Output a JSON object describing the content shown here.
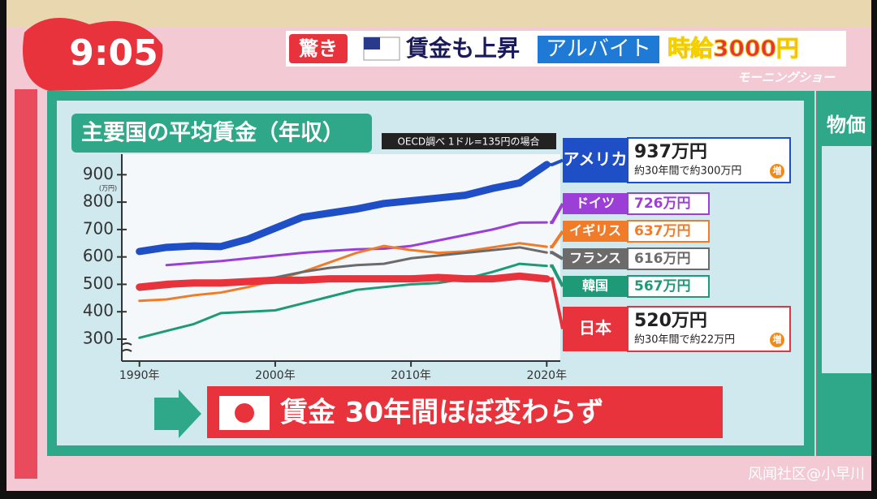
{
  "screen": {
    "clock": "9:05",
    "headline": {
      "tag": "驚き",
      "text": "賃金も上昇",
      "highlight": "アルバイト",
      "emphasis": "時給3000円"
    },
    "program": "モーニングショー",
    "side_panel_title": "物価",
    "watermark": "风闻社区@小早川"
  },
  "chart_data": {
    "type": "line",
    "title": "主要国の平均賃金（年収）",
    "source": "OECD調べ 1ドル=135円の場合",
    "y_unit": "(万円)",
    "x": [
      1990,
      1992,
      1994,
      1996,
      1998,
      2000,
      2002,
      2004,
      2006,
      2008,
      2010,
      2012,
      2014,
      2016,
      2018,
      2020
    ],
    "xlim": [
      1989,
      2021
    ],
    "xticks": [
      {
        "value": 1990,
        "label": "1990年"
      },
      {
        "value": 2000,
        "label": "2000年"
      },
      {
        "value": 2010,
        "label": "2010年"
      },
      {
        "value": 2020,
        "label": "2020年"
      }
    ],
    "ylim": [
      220,
      975
    ],
    "yticks": [
      300,
      400,
      500,
      600,
      700,
      800,
      900
    ],
    "series": [
      {
        "name": "アメリカ",
        "color": "#1f4fc6",
        "width": 9,
        "values": [
          620,
          635,
          640,
          638,
          665,
          705,
          745,
          760,
          775,
          795,
          805,
          815,
          825,
          850,
          870,
          937
        ],
        "value_labels": [
          null,
          null,
          null,
          null,
          null,
          null,
          null,
          null,
          null,
          null,
          null,
          null,
          null,
          null,
          null,
          "937万円"
        ],
        "note": "約30年間で約300万円",
        "badge": "増"
      },
      {
        "name": "ドイツ",
        "color": "#9b3fd6",
        "width": 3,
        "values": [
          null,
          570,
          578,
          585,
          595,
          605,
          615,
          622,
          628,
          630,
          640,
          660,
          680,
          700,
          725,
          726
        ],
        "value_labels": [
          null,
          null,
          null,
          null,
          null,
          null,
          null,
          null,
          null,
          null,
          null,
          null,
          null,
          null,
          null,
          "726万円"
        ]
      },
      {
        "name": "イギリス",
        "color": "#f07c2a",
        "width": 3,
        "values": [
          440,
          445,
          460,
          470,
          490,
          515,
          545,
          580,
          615,
          640,
          625,
          615,
          620,
          635,
          650,
          637
        ],
        "value_labels": [
          null,
          null,
          null,
          null,
          null,
          null,
          null,
          null,
          null,
          null,
          null,
          null,
          null,
          null,
          null,
          "637万円"
        ]
      },
      {
        "name": "フランス",
        "color": "#6b6b6b",
        "width": 3,
        "values": [
          480,
          490,
          500,
          505,
          515,
          525,
          545,
          560,
          570,
          575,
          595,
          605,
          615,
          625,
          635,
          616
        ],
        "value_labels": [
          null,
          null,
          null,
          null,
          null,
          null,
          null,
          null,
          null,
          null,
          null,
          null,
          null,
          null,
          null,
          "616万円"
        ]
      },
      {
        "name": "韓国",
        "color": "#1e9a78",
        "width": 3,
        "values": [
          305,
          330,
          355,
          395,
          400,
          405,
          430,
          455,
          480,
          490,
          500,
          505,
          520,
          545,
          575,
          567
        ],
        "value_labels": [
          null,
          null,
          null,
          null,
          null,
          null,
          null,
          null,
          null,
          null,
          null,
          null,
          null,
          null,
          null,
          "567万円"
        ]
      },
      {
        "name": "日本",
        "color": "#e8333d",
        "width": 9,
        "values": [
          490,
          500,
          505,
          505,
          510,
          515,
          515,
          520,
          520,
          520,
          520,
          525,
          520,
          520,
          530,
          520
        ],
        "value_labels": [
          null,
          null,
          null,
          null,
          null,
          null,
          null,
          null,
          null,
          null,
          null,
          null,
          null,
          null,
          null,
          "520万円"
        ],
        "note": "約30年間で約22万円",
        "badge": "増"
      }
    ],
    "conclusion": "賃金 30年間ほぼ変わらず"
  }
}
